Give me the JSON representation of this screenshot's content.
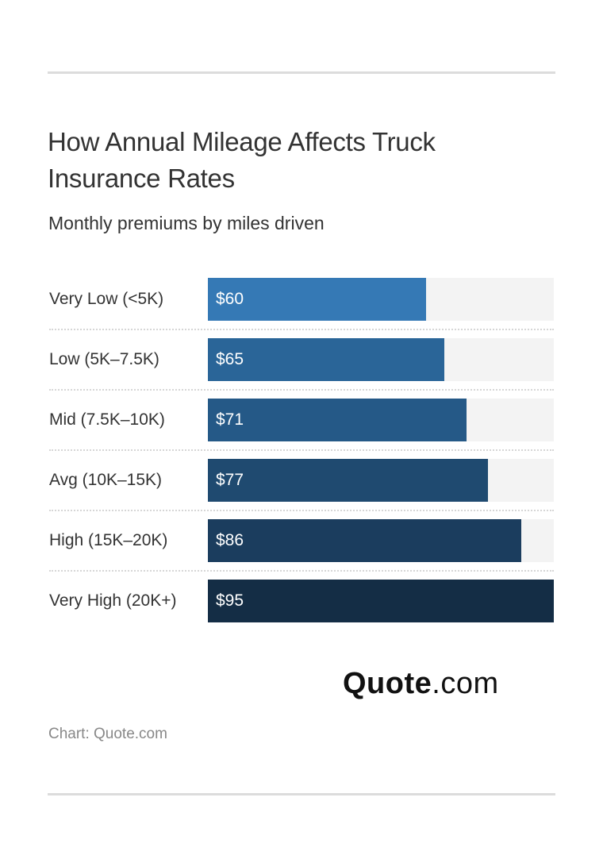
{
  "chart_data": {
    "type": "bar",
    "orientation": "horizontal",
    "title": "How Annual Mileage Affects Truck Insurance Rates",
    "subtitle": "Monthly premiums by miles driven",
    "categories": [
      "Very Low (<5K)",
      "Low (5K–7.5K)",
      "Mid (7.5K–10K)",
      "Avg (10K–15K)",
      "High (15K–20K)",
      "Very High (20K+)"
    ],
    "values": [
      60,
      65,
      71,
      77,
      86,
      95
    ],
    "data_labels": [
      "$60",
      "$65",
      "$71",
      "$77",
      "$86",
      "$95"
    ],
    "xlim": [
      0,
      95
    ],
    "colors": [
      "#3579b5",
      "#2a6598",
      "#255987",
      "#1f4a70",
      "#1b3d5e",
      "#142d45"
    ],
    "grid": false
  },
  "logo": {
    "bold": "Quote",
    "light": ".com"
  },
  "credit": "Chart: Quote.com"
}
